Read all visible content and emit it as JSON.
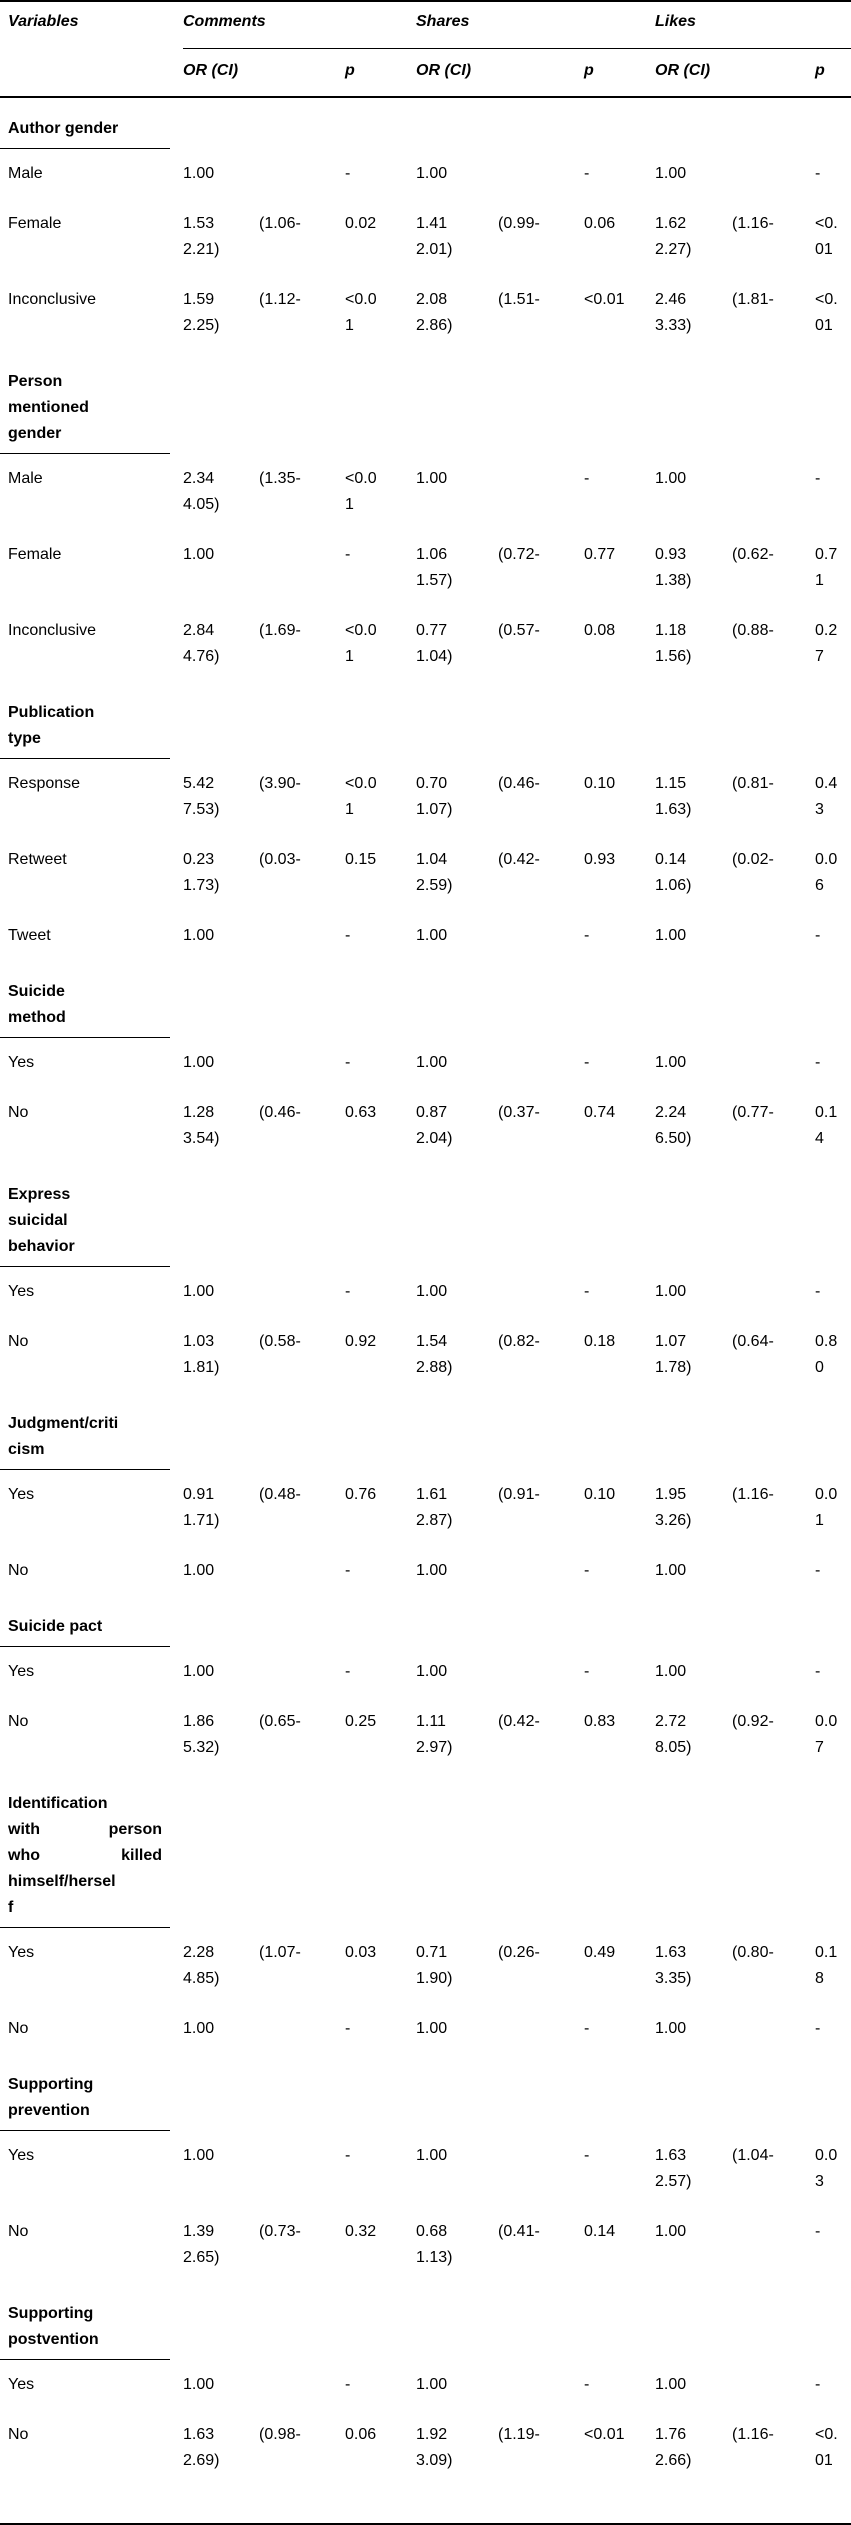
{
  "table": {
    "col_headers": {
      "variables": "Variables",
      "groups": [
        "Comments",
        "Shares",
        "Likes"
      ],
      "or_ci": "OR (CI)",
      "p": "p"
    },
    "sections": [
      {
        "label_lines": [
          "Author gender"
        ],
        "rows": [
          {
            "label": "Male",
            "cells": [
              [
                "1.00"
              ],
              [],
              [
                "-"
              ],
              [
                "1.00"
              ],
              [],
              [
                "-"
              ],
              [
                "1.00"
              ],
              [],
              [
                "-"
              ]
            ]
          },
          {
            "label": "Female",
            "cells": [
              [
                "1.53",
                "2.21)"
              ],
              [
                "(1.06-"
              ],
              [
                "0.02"
              ],
              [
                "1.41",
                "2.01)"
              ],
              [
                "(0.99-"
              ],
              [
                "0.06"
              ],
              [
                "1.62",
                "2.27)"
              ],
              [
                "(1.16-"
              ],
              [
                "<0.",
                "01"
              ]
            ]
          },
          {
            "label": "Inconclusive",
            "cells": [
              [
                "1.59",
                "2.25)"
              ],
              [
                "(1.12-"
              ],
              [
                "<0.0",
                "1"
              ],
              [
                "2.08",
                "2.86)"
              ],
              [
                "(1.51-"
              ],
              [
                "<0.01"
              ],
              [
                "2.46",
                "3.33)"
              ],
              [
                "(1.81-"
              ],
              [
                "<0.",
                "01"
              ]
            ]
          }
        ]
      },
      {
        "label_lines": [
          "Person",
          "mentioned",
          "gender"
        ],
        "rows": [
          {
            "label": "Male",
            "cells": [
              [
                "2.34",
                "4.05)"
              ],
              [
                "(1.35-"
              ],
              [
                "<0.0",
                "1"
              ],
              [
                "1.00"
              ],
              [],
              [
                "-"
              ],
              [
                "1.00"
              ],
              [],
              [
                "-"
              ]
            ]
          },
          {
            "label": "Female",
            "cells": [
              [
                "1.00"
              ],
              [],
              [
                "-"
              ],
              [
                "1.06",
                "1.57)"
              ],
              [
                "(0.72-"
              ],
              [
                "0.77"
              ],
              [
                "0.93",
                "1.38)"
              ],
              [
                "(0.62-"
              ],
              [
                "0.7",
                "1"
              ]
            ]
          },
          {
            "label": "Inconclusive",
            "cells": [
              [
                "2.84",
                "4.76)"
              ],
              [
                "(1.69-"
              ],
              [
                "<0.0",
                "1"
              ],
              [
                "0.77",
                "1.04)"
              ],
              [
                "(0.57-"
              ],
              [
                "0.08"
              ],
              [
                "1.18",
                "1.56)"
              ],
              [
                "(0.88-"
              ],
              [
                "0.2",
                "7"
              ]
            ]
          }
        ]
      },
      {
        "label_lines": [
          "Publication",
          "type"
        ],
        "rows": [
          {
            "label": "Response",
            "cells": [
              [
                "5.42",
                "7.53)"
              ],
              [
                "(3.90-"
              ],
              [
                "<0.0",
                "1"
              ],
              [
                "0.70",
                "1.07)"
              ],
              [
                "(0.46-"
              ],
              [
                "0.10"
              ],
              [
                "1.15",
                "1.63)"
              ],
              [
                "(0.81-"
              ],
              [
                "0.4",
                "3"
              ]
            ]
          },
          {
            "label": "Retweet",
            "cells": [
              [
                "0.23",
                "1.73)"
              ],
              [
                "(0.03-"
              ],
              [
                "0.15"
              ],
              [
                "1.04",
                "2.59)"
              ],
              [
                "(0.42-"
              ],
              [
                "0.93"
              ],
              [
                "0.14",
                "1.06)"
              ],
              [
                "(0.02-"
              ],
              [
                "0.0",
                "6"
              ]
            ]
          },
          {
            "label": "Tweet",
            "cells": [
              [
                "1.00"
              ],
              [],
              [
                "-"
              ],
              [
                "1.00"
              ],
              [],
              [
                "-"
              ],
              [
                "1.00"
              ],
              [],
              [
                "-"
              ]
            ]
          }
        ]
      },
      {
        "label_lines": [
          "Suicide",
          "method"
        ],
        "rows": [
          {
            "label": "Yes",
            "cells": [
              [
                "1.00"
              ],
              [],
              [
                "-"
              ],
              [
                "1.00"
              ],
              [],
              [
                "-"
              ],
              [
                "1.00"
              ],
              [],
              [
                "-"
              ]
            ]
          },
          {
            "label": "No",
            "cells": [
              [
                "1.28",
                "3.54)"
              ],
              [
                "(0.46-"
              ],
              [
                "0.63"
              ],
              [
                "0.87",
                "2.04)"
              ],
              [
                "(0.37-"
              ],
              [
                "0.74"
              ],
              [
                "2.24",
                "6.50)"
              ],
              [
                "(0.77-"
              ],
              [
                "0.1",
                "4"
              ]
            ]
          }
        ]
      },
      {
        "label_lines": [
          "Express",
          "suicidal",
          "behavior"
        ],
        "rows": [
          {
            "label": "Yes",
            "cells": [
              [
                "1.00"
              ],
              [],
              [
                "-"
              ],
              [
                "1.00"
              ],
              [],
              [
                "-"
              ],
              [
                "1.00"
              ],
              [],
              [
                "-"
              ]
            ]
          },
          {
            "label": "No",
            "cells": [
              [
                "1.03",
                "1.81)"
              ],
              [
                "(0.58-"
              ],
              [
                "0.92"
              ],
              [
                "1.54",
                "2.88)"
              ],
              [
                "(0.82-"
              ],
              [
                "0.18"
              ],
              [
                "1.07",
                "1.78)"
              ],
              [
                "(0.64-"
              ],
              [
                "0.8",
                "0"
              ]
            ]
          }
        ]
      },
      {
        "label_lines": [
          "Judgment/criti",
          "cism"
        ],
        "rows": [
          {
            "label": "Yes",
            "cells": [
              [
                "0.91",
                "1.71)"
              ],
              [
                "(0.48-"
              ],
              [
                "0.76"
              ],
              [
                "1.61",
                "2.87)"
              ],
              [
                "(0.91-"
              ],
              [
                "0.10"
              ],
              [
                "1.95",
                "3.26)"
              ],
              [
                "(1.16-"
              ],
              [
                "0.0",
                "1"
              ]
            ]
          },
          {
            "label": "No",
            "cells": [
              [
                "1.00"
              ],
              [],
              [
                "-"
              ],
              [
                "1.00"
              ],
              [],
              [
                "-"
              ],
              [
                "1.00"
              ],
              [],
              [
                "-"
              ]
            ]
          }
        ]
      },
      {
        "label_lines": [
          "Suicide pact"
        ],
        "rows": [
          {
            "label": "Yes",
            "cells": [
              [
                "1.00"
              ],
              [],
              [
                "-"
              ],
              [
                "1.00"
              ],
              [],
              [
                "-"
              ],
              [
                "1.00"
              ],
              [],
              [
                "-"
              ]
            ]
          },
          {
            "label": "No",
            "cells": [
              [
                "1.86",
                "5.32)"
              ],
              [
                "(0.65-"
              ],
              [
                "0.25"
              ],
              [
                "1.11",
                "2.97)"
              ],
              [
                "(0.42-"
              ],
              [
                "0.83"
              ],
              [
                "2.72",
                "8.05)"
              ],
              [
                "(0.92-"
              ],
              [
                "0.0",
                "7"
              ]
            ]
          }
        ]
      },
      {
        "label_lines": [
          "Identification",
          [
            "with",
            "person"
          ],
          [
            "who",
            "killed"
          ],
          "himself/hersel",
          "f"
        ],
        "rows": [
          {
            "label": "Yes",
            "cells": [
              [
                "2.28",
                "4.85)"
              ],
              [
                "(1.07-"
              ],
              [
                "0.03"
              ],
              [
                "0.71",
                "1.90)"
              ],
              [
                "(0.26-"
              ],
              [
                "0.49"
              ],
              [
                "1.63",
                "3.35)"
              ],
              [
                "(0.80-"
              ],
              [
                "0.1",
                "8"
              ]
            ]
          },
          {
            "label": "No",
            "cells": [
              [
                "1.00"
              ],
              [],
              [
                "-"
              ],
              [
                "1.00"
              ],
              [],
              [
                "-"
              ],
              [
                "1.00"
              ],
              [],
              [
                "-"
              ]
            ]
          }
        ]
      },
      {
        "label_lines": [
          "Supporting",
          "prevention"
        ],
        "rows": [
          {
            "label": "Yes",
            "cells": [
              [
                "1.00"
              ],
              [],
              [
                "-"
              ],
              [
                "1.00"
              ],
              [],
              [
                "-"
              ],
              [
                "1.63",
                "2.57)"
              ],
              [
                "(1.04-"
              ],
              [
                "0.0",
                "3"
              ]
            ]
          },
          {
            "label": "No",
            "cells": [
              [
                "1.39",
                "2.65)"
              ],
              [
                "(0.73-"
              ],
              [
                "0.32"
              ],
              [
                "0.68",
                "1.13)"
              ],
              [
                "(0.41-"
              ],
              [
                "0.14"
              ],
              [
                "1.00"
              ],
              [],
              [
                "-"
              ]
            ]
          }
        ]
      },
      {
        "label_lines": [
          "Supporting",
          "postvention"
        ],
        "rows": [
          {
            "label": "Yes",
            "cells": [
              [
                "1.00"
              ],
              [],
              [
                "-"
              ],
              [
                "1.00"
              ],
              [],
              [
                "-"
              ],
              [
                "1.00"
              ],
              [],
              [
                "-"
              ]
            ]
          },
          {
            "label": "No",
            "cells": [
              [
                "1.63",
                "2.69)"
              ],
              [
                "(0.98-"
              ],
              [
                "0.06"
              ],
              [
                "1.92",
                "3.09)"
              ],
              [
                "(1.19-"
              ],
              [
                "<0.01"
              ],
              [
                "1.76",
                "2.66)"
              ],
              [
                "(1.16-"
              ],
              [
                "<0.",
                "01"
              ]
            ]
          }
        ]
      }
    ]
  }
}
